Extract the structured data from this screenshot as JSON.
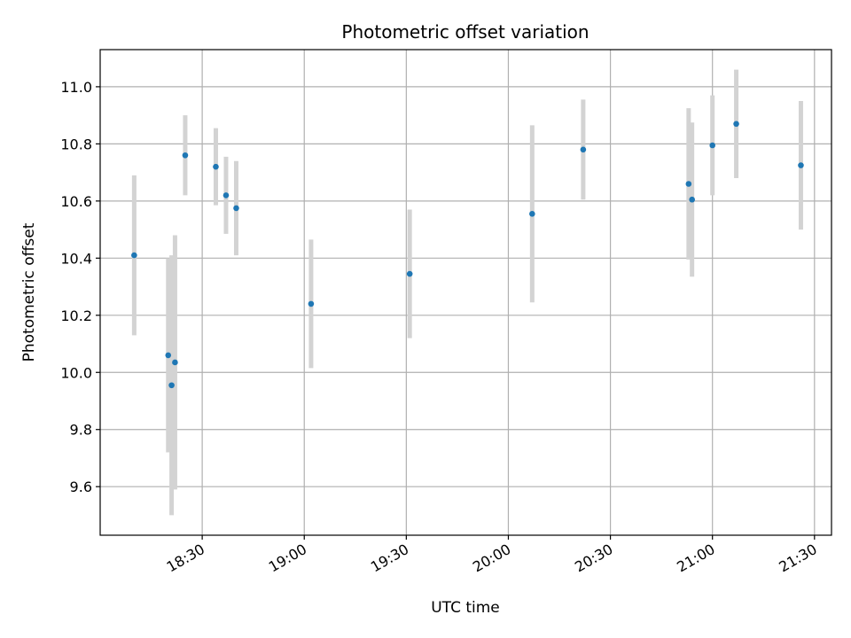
{
  "chart_data": {
    "type": "scatter",
    "title": "Photometric offset variation",
    "xlabel": "UTC time",
    "ylabel": "Photometric offset",
    "x_tick_labels": [
      "18:30",
      "19:00",
      "19:30",
      "20:00",
      "20:30",
      "21:00",
      "21:30"
    ],
    "x_tick_values": [
      "18:30",
      "19:00",
      "19:30",
      "20:00",
      "20:30",
      "21:00",
      "21:30"
    ],
    "y_tick_labels": [
      "9.6",
      "9.8",
      "10.0",
      "10.2",
      "10.4",
      "10.6",
      "10.8",
      "11.0"
    ],
    "y_tick_values": [
      9.6,
      9.8,
      10.0,
      10.2,
      10.4,
      10.6,
      10.8,
      11.0
    ],
    "xlim": [
      "18:00",
      "21:35"
    ],
    "ylim": [
      9.43,
      11.13
    ],
    "grid": true,
    "colors": {
      "point": "#1f77b4",
      "errorbar": "#d3d3d3",
      "grid": "#b0b0b0"
    },
    "points": [
      {
        "x": "18:10",
        "y": 10.41,
        "yerr": 0.28
      },
      {
        "x": "18:20",
        "y": 10.06,
        "yerr": 0.34
      },
      {
        "x": "18:21",
        "y": 9.955,
        "yerr": 0.455
      },
      {
        "x": "18:22",
        "y": 10.035,
        "yerr": 0.445
      },
      {
        "x": "18:25",
        "y": 10.76,
        "yerr": 0.14
      },
      {
        "x": "18:34",
        "y": 10.72,
        "yerr": 0.135
      },
      {
        "x": "18:37",
        "y": 10.62,
        "yerr": 0.135
      },
      {
        "x": "18:40",
        "y": 10.575,
        "yerr": 0.165
      },
      {
        "x": "19:02",
        "y": 10.24,
        "yerr": 0.225
      },
      {
        "x": "19:31",
        "y": 10.345,
        "yerr": 0.225
      },
      {
        "x": "20:07",
        "y": 10.555,
        "yerr": 0.31
      },
      {
        "x": "20:22",
        "y": 10.78,
        "yerr": 0.175
      },
      {
        "x": "20:53",
        "y": 10.66,
        "yerr": 0.265
      },
      {
        "x": "20:54",
        "y": 10.605,
        "yerr": 0.27
      },
      {
        "x": "21:00",
        "y": 10.795,
        "yerr": 0.175
      },
      {
        "x": "21:07",
        "y": 10.87,
        "yerr": 0.19
      },
      {
        "x": "21:26",
        "y": 10.725,
        "yerr": 0.225
      }
    ]
  }
}
